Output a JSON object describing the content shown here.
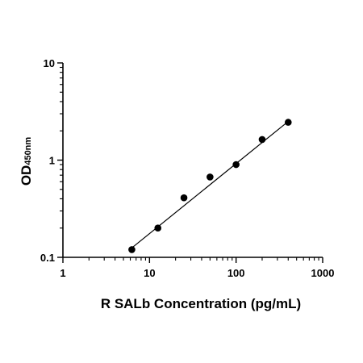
{
  "chart_data": {
    "type": "scatter",
    "title": "",
    "xlabel": "R SALb Concentration (pg/mL)",
    "ylabel": "OD",
    "ylabel_subscript": "450nm",
    "x_scale": "log",
    "y_scale": "log",
    "xlim": [
      1,
      1000
    ],
    "ylim": [
      0.1,
      10
    ],
    "x_ticks": [
      1,
      10,
      100,
      1000
    ],
    "x_tick_labels": [
      "1",
      "10",
      "100",
      "1000"
    ],
    "y_ticks": [
      0.1,
      1,
      10
    ],
    "y_tick_labels": [
      "0.1",
      "1",
      "10"
    ],
    "grid": false,
    "series": [
      {
        "points": [
          {
            "x": 6.25,
            "y": 0.12
          },
          {
            "x": 12.5,
            "y": 0.2
          },
          {
            "x": 25,
            "y": 0.41
          },
          {
            "x": 50,
            "y": 0.67
          },
          {
            "x": 100,
            "y": 0.9
          },
          {
            "x": 200,
            "y": 1.63
          },
          {
            "x": 400,
            "y": 2.45
          }
        ],
        "fit": {
          "x": [
            6.25,
            400
          ],
          "y": [
            0.125,
            2.5
          ]
        }
      }
    ]
  }
}
